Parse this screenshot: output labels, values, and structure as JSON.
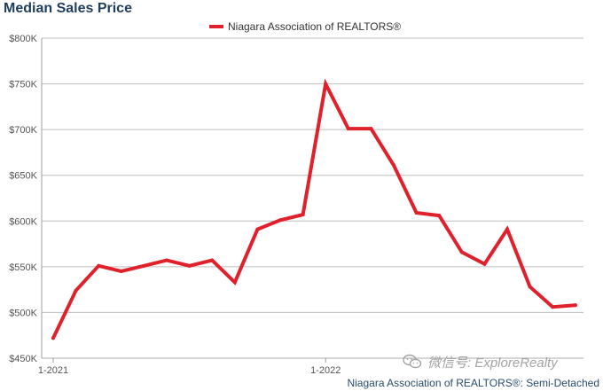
{
  "title": "Median Sales Price",
  "legend": {
    "label": "Niagara Association of REALTORS®"
  },
  "watermark": {
    "text": "微信号: ExploreRealty",
    "icon": "wechat-icon"
  },
  "source_note": "Niagara Association of REALTORS®: Semi-Detached",
  "colors": {
    "series": "#e0202b",
    "grid": "#bdbdbd",
    "title": "#1f3d5c"
  },
  "chart_data": {
    "type": "line",
    "title": "Median Sales Price",
    "xlabel": "",
    "ylabel": "",
    "ylim": [
      450000,
      800000
    ],
    "yticks": [
      450000,
      500000,
      550000,
      600000,
      650000,
      700000,
      750000,
      800000
    ],
    "ytick_labels": [
      "$450K",
      "$500K",
      "$550K",
      "$600K",
      "$650K",
      "$700K",
      "$750K",
      "$800K"
    ],
    "x_tick_labels": [
      {
        "label": "1-2021",
        "index": 0
      },
      {
        "label": "1-2022",
        "index": 12
      }
    ],
    "grid": true,
    "legend_position": "top-center",
    "series": [
      {
        "name": "Niagara Association of REALTORS®",
        "values": [
          472000,
          524000,
          551000,
          545000,
          551000,
          557000,
          551000,
          557000,
          533000,
          591000,
          601000,
          607000,
          750000,
          701000,
          701000,
          661000,
          609000,
          606000,
          566000,
          553000,
          591000,
          528000,
          506000,
          508000
        ]
      }
    ]
  }
}
